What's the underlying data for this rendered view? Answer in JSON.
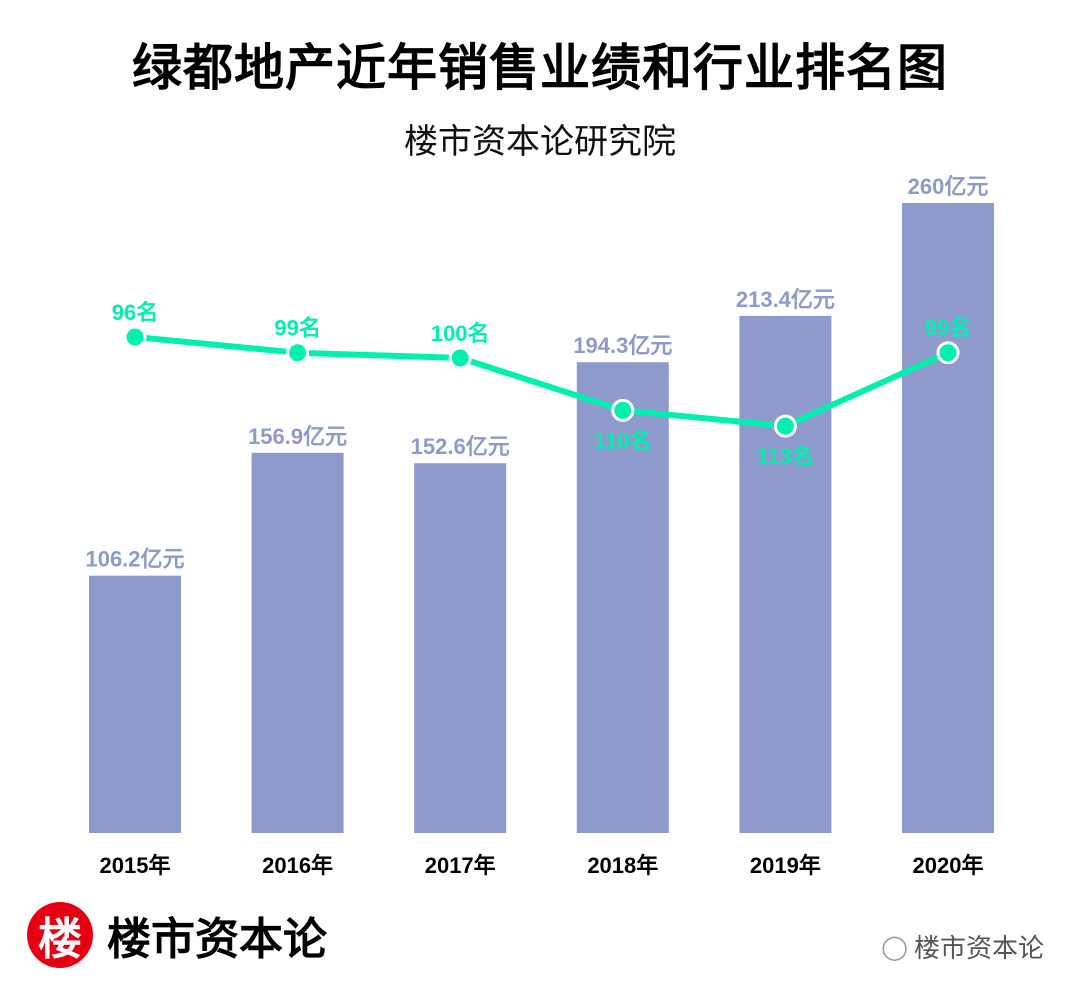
{
  "title": "绿都地产近年销售业绩和行业排名图",
  "subtitle": "楼市资本论研究院",
  "chart_data": {
    "type": "bar",
    "categories": [
      "2015年",
      "2016年",
      "2017年",
      "2018年",
      "2019年",
      "2020年"
    ],
    "series": [
      {
        "type": "bar",
        "values": [
          106.2,
          156.9,
          152.6,
          194.3,
          213.4,
          260
        ],
        "labels": [
          "106.2亿元",
          "156.9亿元",
          "152.6亿元",
          "194.3亿元",
          "213.4亿元",
          "260亿元"
        ],
        "color": "#8e9acc"
      },
      {
        "type": "line",
        "values": [
          96,
          99,
          100,
          110,
          113,
          99
        ],
        "labels": [
          "96名",
          "99名",
          "100名",
          "110名",
          "113名",
          "99名"
        ],
        "color": "#00f0b0",
        "axis": "inverted"
      }
    ],
    "ylim": [
      0,
      260
    ],
    "grid": false
  },
  "logo": {
    "mark": "楼",
    "text": "楼市资本论"
  },
  "watermark": {
    "icon": "wechat-icon",
    "text": "楼市资本论"
  }
}
